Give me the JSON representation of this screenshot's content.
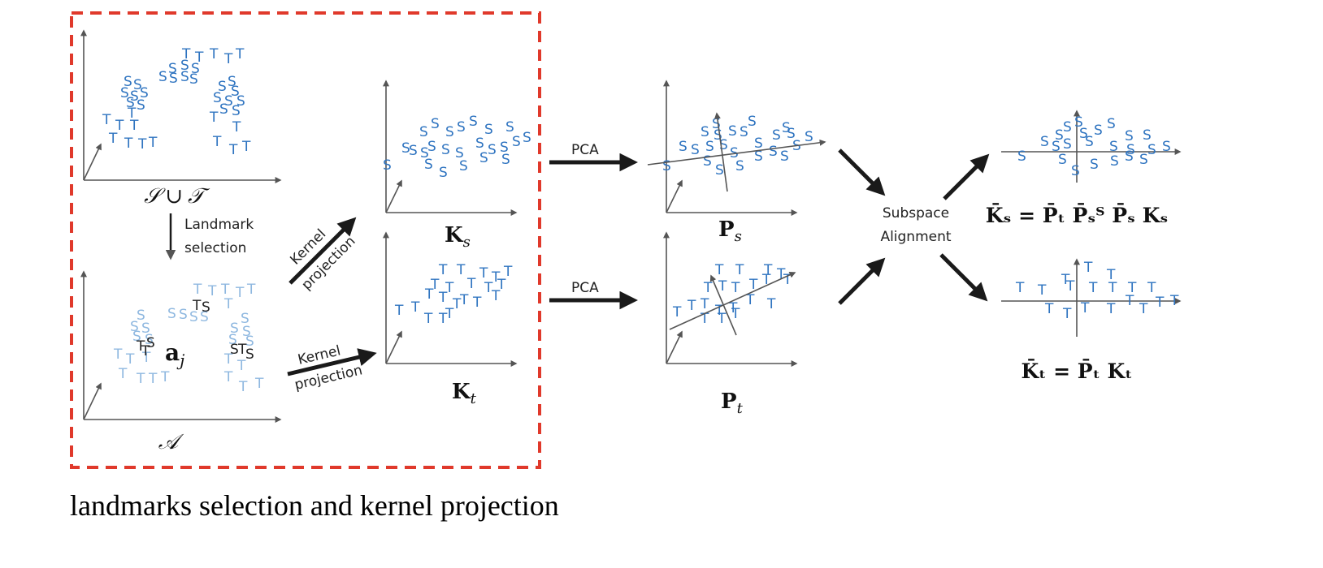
{
  "colors": {
    "point_blue": "#2f74c0",
    "point_light_blue": "#8fb8e0",
    "landmark_black": "#222222",
    "dashed_box": "#e0392b",
    "arrow": "#1a1a1a",
    "axis": "#555555"
  },
  "text": {
    "landmark_selection_line1": "Landmark",
    "landmark_selection_line2": "selection",
    "kernel_projection_1_line1": "Kernel",
    "kernel_projection_1_line2": "projection",
    "kernel_projection_2_line1": "Kernel",
    "kernel_projection_2_line2": "projection",
    "pca_1": "PCA",
    "pca_2": "PCA",
    "subspace_line1": "Subspace",
    "subspace_line2": "Alignment",
    "caption": "landmarks selection and kernel projection"
  },
  "math": {
    "union_S": "𝒮",
    "union_op": "∪",
    "union_T": "𝒯",
    "A_set": "𝒜",
    "a_j_bold": "a",
    "a_j_sub": "j",
    "Ks_main": "K",
    "Ks_sub": "s",
    "Kt_main": "K",
    "Kt_sub": "t",
    "Ps_main": "P",
    "Ps_sub": "s",
    "Pt_main": "P",
    "Pt_sub": "t",
    "eq_Ks": "K̄ₛ = P̄ₜ P̄ₛᵀ P̄ₛ Kₛ",
    "eq_Kt": "K̄ₜ = P̄ₜ Kₜ"
  },
  "point_glyphs": {
    "source": "S",
    "target": "T"
  }
}
